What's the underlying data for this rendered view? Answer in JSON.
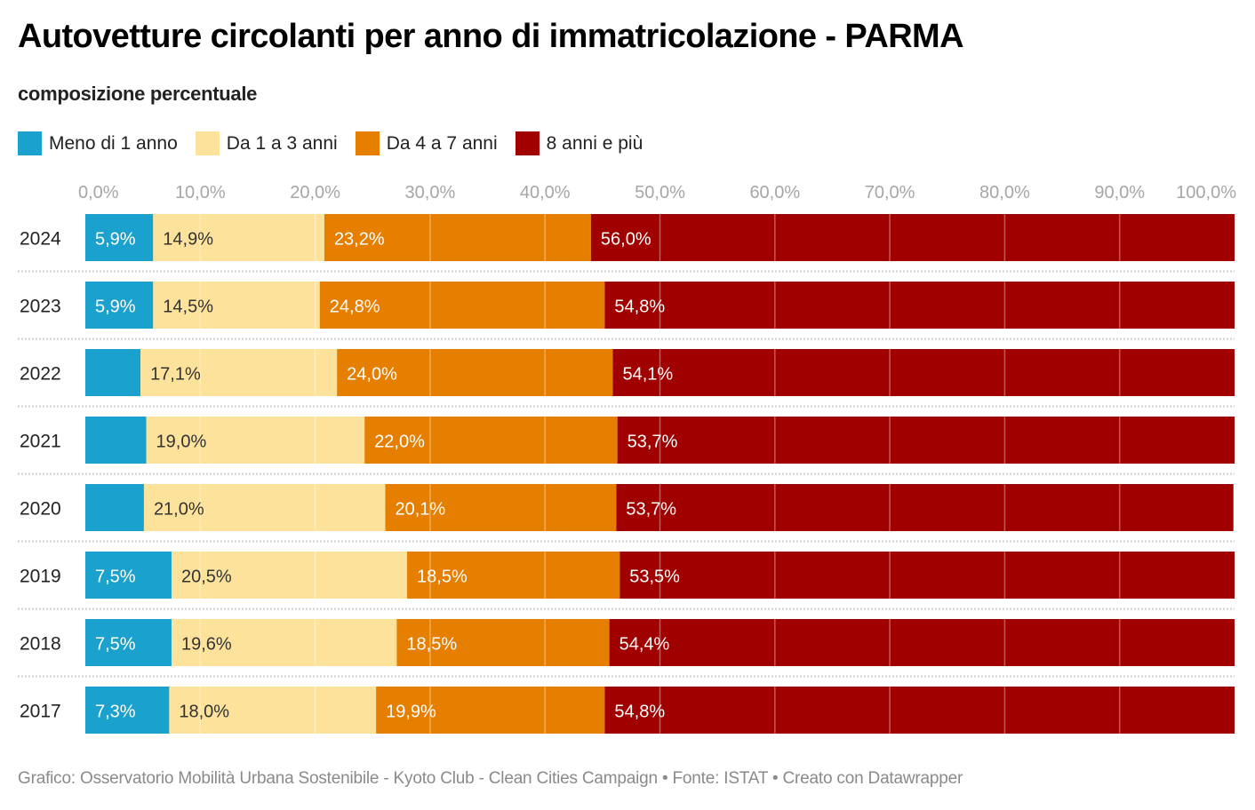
{
  "title": "Autovetture circolanti per anno di immatricolazione - PARMA",
  "subtitle": "composizione percentuale",
  "footer": "Grafico: Osservatorio Mobilità Urbana Sostenibile - Kyoto Club - Clean Cities Campaign • Fonte: ISTAT • Creato con Datawrapper",
  "chart_data": {
    "type": "bar",
    "orientation": "horizontal",
    "stacked": true,
    "title": "Autovetture circolanti per anno di immatricolazione - PARMA",
    "subtitle": "composizione percentuale",
    "xlabel": "",
    "ylabel": "",
    "xlim": [
      0,
      100
    ],
    "x_ticks": [
      "0,0%",
      "10,0%",
      "20,0%",
      "30,0%",
      "40,0%",
      "50,0%",
      "60,0%",
      "70,0%",
      "80,0%",
      "90,0%",
      "100,0%"
    ],
    "grid": true,
    "legend_position": "top-left",
    "categories": [
      "2024",
      "2023",
      "2022",
      "2021",
      "2020",
      "2019",
      "2018",
      "2017"
    ],
    "series": [
      {
        "name": "Meno di 1 anno",
        "color": "#1ba1cd",
        "text_color": "#ffffff",
        "values": [
          5.9,
          5.9,
          4.8,
          5.3,
          5.1,
          7.5,
          7.5,
          7.3
        ],
        "labels": [
          "5,9%",
          "5,9%",
          "",
          "",
          "",
          "7,5%",
          "7,5%",
          "7,3%"
        ]
      },
      {
        "name": "Da 1 a 3 anni",
        "color": "#fde29b",
        "text_color": "#333333",
        "values": [
          14.9,
          14.5,
          17.1,
          19.0,
          21.0,
          20.5,
          19.6,
          18.0
        ],
        "labels": [
          "14,9%",
          "14,5%",
          "17,1%",
          "19,0%",
          "21,0%",
          "20,5%",
          "19,6%",
          "18,0%"
        ]
      },
      {
        "name": "Da 4 a 7 anni",
        "color": "#e67e00",
        "text_color": "#ffffff",
        "values": [
          23.2,
          24.8,
          24.0,
          22.0,
          20.1,
          18.5,
          18.5,
          19.9
        ],
        "labels": [
          "23,2%",
          "24,8%",
          "24,0%",
          "22,0%",
          "20,1%",
          "18,5%",
          "18,5%",
          "19,9%"
        ]
      },
      {
        "name": "8 anni e più",
        "color": "#a00000",
        "text_color": "#ffffff",
        "values": [
          56.0,
          54.8,
          54.1,
          53.7,
          53.7,
          53.5,
          54.4,
          54.8
        ],
        "labels": [
          "56,0%",
          "54,8%",
          "54,1%",
          "53,7%",
          "53,7%",
          "53,5%",
          "54,4%",
          "54,8%"
        ]
      }
    ]
  }
}
